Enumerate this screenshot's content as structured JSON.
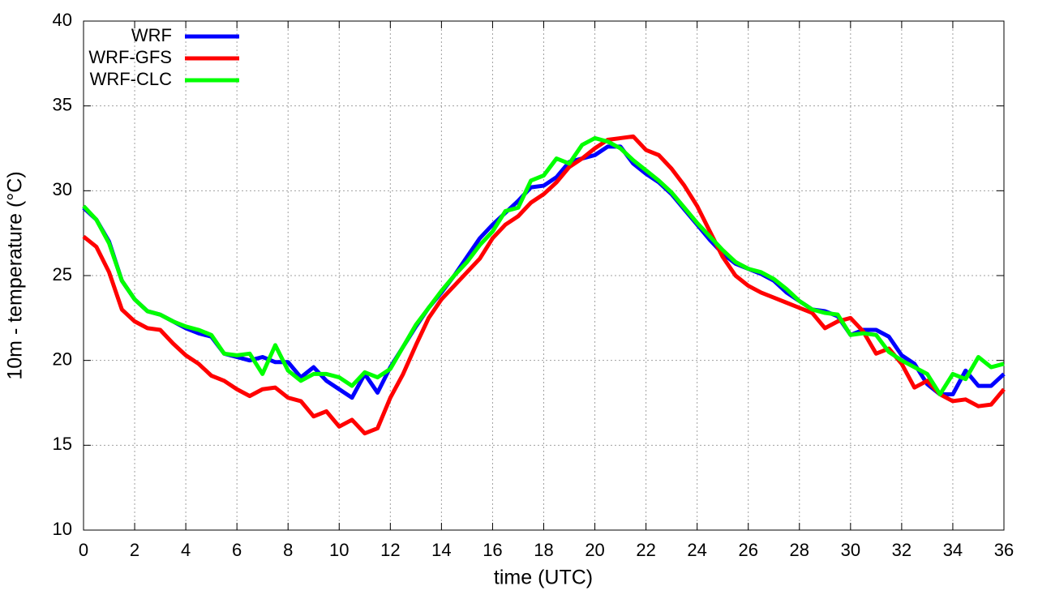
{
  "chart_data": {
    "type": "line",
    "xlabel": "time (UTC)",
    "ylabel": "10m - temperature (°C)",
    "x": [
      0,
      0.5,
      1,
      1.5,
      2,
      2.5,
      3,
      3.5,
      4,
      4.5,
      5,
      5.5,
      6,
      6.5,
      7,
      7.5,
      8,
      8.5,
      9,
      9.5,
      10,
      10.5,
      11,
      11.5,
      12,
      12.5,
      13,
      13.5,
      14,
      14.5,
      15,
      15.5,
      16,
      16.5,
      17,
      17.5,
      18,
      18.5,
      19,
      19.5,
      20,
      20.5,
      21,
      21.5,
      22,
      22.5,
      23,
      23.5,
      24,
      24.5,
      25,
      25.5,
      26,
      26.5,
      27,
      27.5,
      28,
      28.5,
      29,
      29.5,
      30,
      30.5,
      31,
      31.5,
      32,
      32.5,
      33,
      33.5,
      34,
      34.5,
      35,
      35.5,
      36
    ],
    "series": [
      {
        "name": "WRF",
        "color": "#0000ff",
        "values": [
          29.0,
          28.3,
          27.0,
          24.7,
          23.6,
          22.9,
          22.7,
          22.3,
          21.9,
          21.6,
          21.4,
          20.4,
          20.2,
          20.0,
          20.2,
          19.9,
          19.9,
          19.0,
          19.6,
          18.8,
          18.3,
          17.8,
          19.2,
          18.1,
          19.6,
          20.8,
          22.0,
          23.1,
          24.0,
          25.0,
          26.1,
          27.2,
          28.0,
          28.7,
          29.4,
          30.2,
          30.3,
          30.8,
          31.7,
          31.9,
          32.1,
          32.6,
          32.6,
          31.6,
          31.0,
          30.5,
          29.8,
          28.9,
          28.0,
          27.1,
          26.3,
          25.7,
          25.4,
          25.1,
          24.7,
          24.0,
          23.5,
          23.0,
          22.9,
          22.6,
          21.5,
          21.8,
          21.8,
          21.4,
          20.3,
          19.8,
          18.6,
          18.0,
          18.0,
          19.4,
          18.5,
          18.5,
          19.2
        ]
      },
      {
        "name": "WRF-GFS",
        "color": "#ff0000",
        "values": [
          27.3,
          26.7,
          25.2,
          23.0,
          22.3,
          21.9,
          21.8,
          21.0,
          20.3,
          19.8,
          19.1,
          18.8,
          18.3,
          17.9,
          18.3,
          18.4,
          17.8,
          17.6,
          16.7,
          17.0,
          16.1,
          16.5,
          15.7,
          16.0,
          17.8,
          19.2,
          20.9,
          22.5,
          23.6,
          24.4,
          25.2,
          26.0,
          27.2,
          28.0,
          28.5,
          29.3,
          29.8,
          30.5,
          31.4,
          31.9,
          32.5,
          33.0,
          33.1,
          33.2,
          32.4,
          32.1,
          31.3,
          30.3,
          29.1,
          27.6,
          26.1,
          25.0,
          24.4,
          24.0,
          23.7,
          23.4,
          23.1,
          22.8,
          21.9,
          22.3,
          22.5,
          21.7,
          20.4,
          20.7,
          19.8,
          18.4,
          18.8,
          18.0,
          17.6,
          17.7,
          17.3,
          17.4,
          18.3
        ]
      },
      {
        "name": "WRF-CLC",
        "color": "#00ff00",
        "values": [
          29.1,
          28.3,
          26.9,
          24.7,
          23.6,
          22.9,
          22.7,
          22.3,
          22.0,
          21.8,
          21.5,
          20.4,
          20.3,
          20.4,
          19.2,
          20.9,
          19.4,
          18.8,
          19.2,
          19.2,
          19.0,
          18.5,
          19.3,
          19.0,
          19.5,
          20.8,
          22.1,
          23.1,
          24.1,
          25.0,
          25.8,
          26.8,
          27.6,
          28.8,
          29.0,
          30.6,
          30.9,
          31.9,
          31.6,
          32.7,
          33.1,
          32.9,
          32.5,
          31.8,
          31.2,
          30.6,
          29.9,
          29.0,
          28.1,
          27.3,
          26.5,
          25.8,
          25.4,
          25.2,
          24.8,
          24.2,
          23.5,
          23.0,
          22.8,
          22.7,
          21.5,
          21.6,
          21.5,
          20.5,
          20.0,
          19.6,
          19.2,
          18.0,
          19.2,
          18.9,
          20.2,
          19.6,
          19.8
        ]
      }
    ],
    "xlim": [
      0,
      36
    ],
    "xticks": [
      0,
      2,
      4,
      6,
      8,
      10,
      12,
      14,
      16,
      18,
      20,
      22,
      24,
      26,
      28,
      30,
      32,
      34,
      36
    ],
    "ylim": [
      10,
      40
    ],
    "yticks": [
      10,
      15,
      20,
      25,
      30,
      35,
      40
    ],
    "grid": true,
    "legend": "upper left"
  }
}
